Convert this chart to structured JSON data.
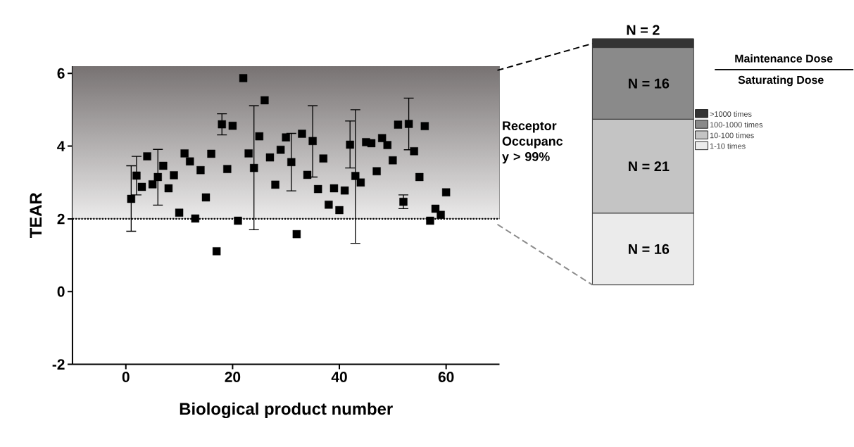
{
  "chart_data": [
    {
      "type": "scatter",
      "xlabel": "Biological product number",
      "ylabel": "TEAR",
      "x": [
        1,
        2,
        3,
        4,
        5,
        6,
        7,
        8,
        9,
        10,
        11,
        12,
        13,
        14,
        15,
        16,
        17,
        18,
        19,
        20,
        21,
        22,
        23,
        24,
        25,
        26,
        27,
        28,
        29,
        30,
        31,
        32,
        33,
        34,
        35,
        36,
        37,
        38,
        39,
        40,
        41,
        42,
        43,
        44,
        45,
        46,
        47,
        48,
        49,
        50,
        51,
        52,
        53,
        54,
        55,
        56,
        57,
        58,
        59,
        60
      ],
      "series": [
        {
          "color": "#000000",
          "values": [
            2.55,
            3.19,
            2.88,
            3.72,
            2.95,
            3.15,
            3.46,
            2.84,
            3.2,
            2.17,
            3.8,
            3.58,
            2.01,
            3.34,
            2.59,
            3.79,
            1.11,
            4.6,
            3.37,
            4.56,
            1.95,
            5.87,
            3.8,
            3.4,
            4.27,
            5.26,
            3.69,
            2.94,
            3.9,
            4.24,
            3.56,
            1.58,
            4.34,
            3.21,
            4.14,
            2.82,
            3.66,
            2.39,
            2.84,
            2.24,
            2.78,
            4.04,
            3.18,
            3.0,
            4.11,
            4.08,
            3.31,
            4.22,
            4.03,
            3.61,
            4.59,
            2.47,
            4.61,
            3.86,
            3.15,
            4.55,
            1.95,
            2.28,
            2.11,
            2.73
          ],
          "errors": [
            [
              1.66,
              3.46
            ],
            [
              2.66,
              3.72
            ],
            null,
            null,
            null,
            [
              2.38,
              3.91
            ],
            null,
            null,
            null,
            null,
            null,
            null,
            null,
            null,
            null,
            null,
            null,
            [
              4.31,
              4.89
            ],
            null,
            null,
            null,
            null,
            null,
            [
              1.7,
              5.11
            ],
            null,
            null,
            null,
            null,
            null,
            null,
            [
              2.77,
              4.35
            ],
            null,
            null,
            null,
            [
              3.15,
              5.11
            ],
            null,
            null,
            null,
            null,
            null,
            null,
            [
              3.4,
              4.69
            ],
            [
              1.33,
              5.0
            ],
            null,
            null,
            null,
            null,
            null,
            null,
            null,
            null,
            [
              2.28,
              2.66
            ],
            [
              3.9,
              5.32
            ],
            null,
            null,
            null,
            null,
            null,
            null,
            null
          ]
        }
      ],
      "marker": "square",
      "xlim": [
        -10,
        70
      ],
      "xticks": [
        0,
        20,
        40,
        60
      ],
      "ylim": [
        -2,
        6.2
      ],
      "yticks": [
        -2,
        0,
        2,
        4,
        6
      ],
      "ref_lines": [
        {
          "axis": "y",
          "value": 2,
          "line_style": "dotted",
          "color": "#000000"
        }
      ],
      "bands": [
        {
          "axis": "y",
          "from": 2,
          "to": 6.2,
          "label": "Receptor Occupanc y > 99%",
          "color": "#777272"
        }
      ]
    },
    {
      "type": "bar",
      "stacked": true,
      "categories": [
        null
      ],
      "tick_labels": false,
      "legend": "right",
      "legend_title": "Maintenance Dose",
      "annotations": [
        "Saturating Dose"
      ],
      "series": [
        {
          "name": "1-10 times",
          "color": "#ebebeb",
          "values": [
            16
          ],
          "value_labels": [
            "N = 16"
          ]
        },
        {
          "name": "10-100 times",
          "color": "#c4c4c4",
          "values": [
            21
          ],
          "value_labels": [
            "N = 21"
          ]
        },
        {
          "name": "100-1000 times",
          "color": "#8a8a8a",
          "values": [
            16
          ],
          "value_labels": [
            "N = 16"
          ]
        },
        {
          "name": ">1000 times",
          "color": "#333333",
          "values": [
            2
          ],
          "value_labels": [
            "N = 2"
          ]
        }
      ]
    }
  ]
}
